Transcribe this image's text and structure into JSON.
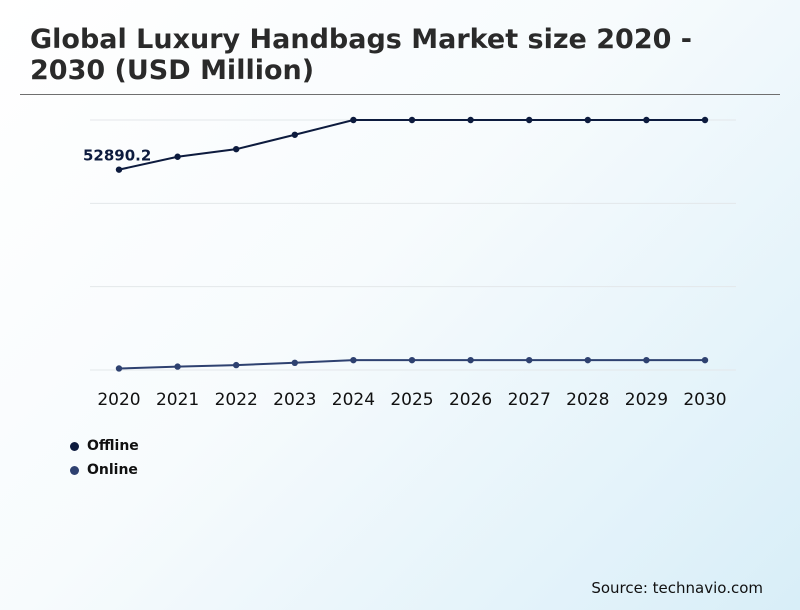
{
  "title": "Global Luxury Handbags Market size 2020 - 2030 (USD Million)",
  "source": "Source: technavio.com",
  "colors": {
    "offline": "#0d1b3e",
    "online": "#2e4170",
    "grid": "#e3e7ea"
  },
  "chart_data": {
    "type": "line",
    "title": "Global Luxury Handbags Market size 2020 - 2030 (USD Million)",
    "x": [
      "2020",
      "2021",
      "2022",
      "2023",
      "2024",
      "2025",
      "2026",
      "2027",
      "2028",
      "2029",
      "2030"
    ],
    "series": [
      {
        "name": "Offline",
        "values": [
          52890.2,
          56300,
          58300,
          62100,
          66000,
          66000,
          66000,
          66000,
          66000,
          66000,
          66000
        ]
      },
      {
        "name": "Online",
        "values": [
          400,
          900,
          1300,
          1900,
          2600,
          2600,
          2600,
          2600,
          2600,
          2600,
          2600
        ]
      }
    ],
    "data_labels": [
      {
        "series": "Offline",
        "x": "2020",
        "text": "52890.2"
      }
    ],
    "ylim": [
      0,
      66000
    ],
    "grid": true,
    "legend": "bottom-left"
  }
}
